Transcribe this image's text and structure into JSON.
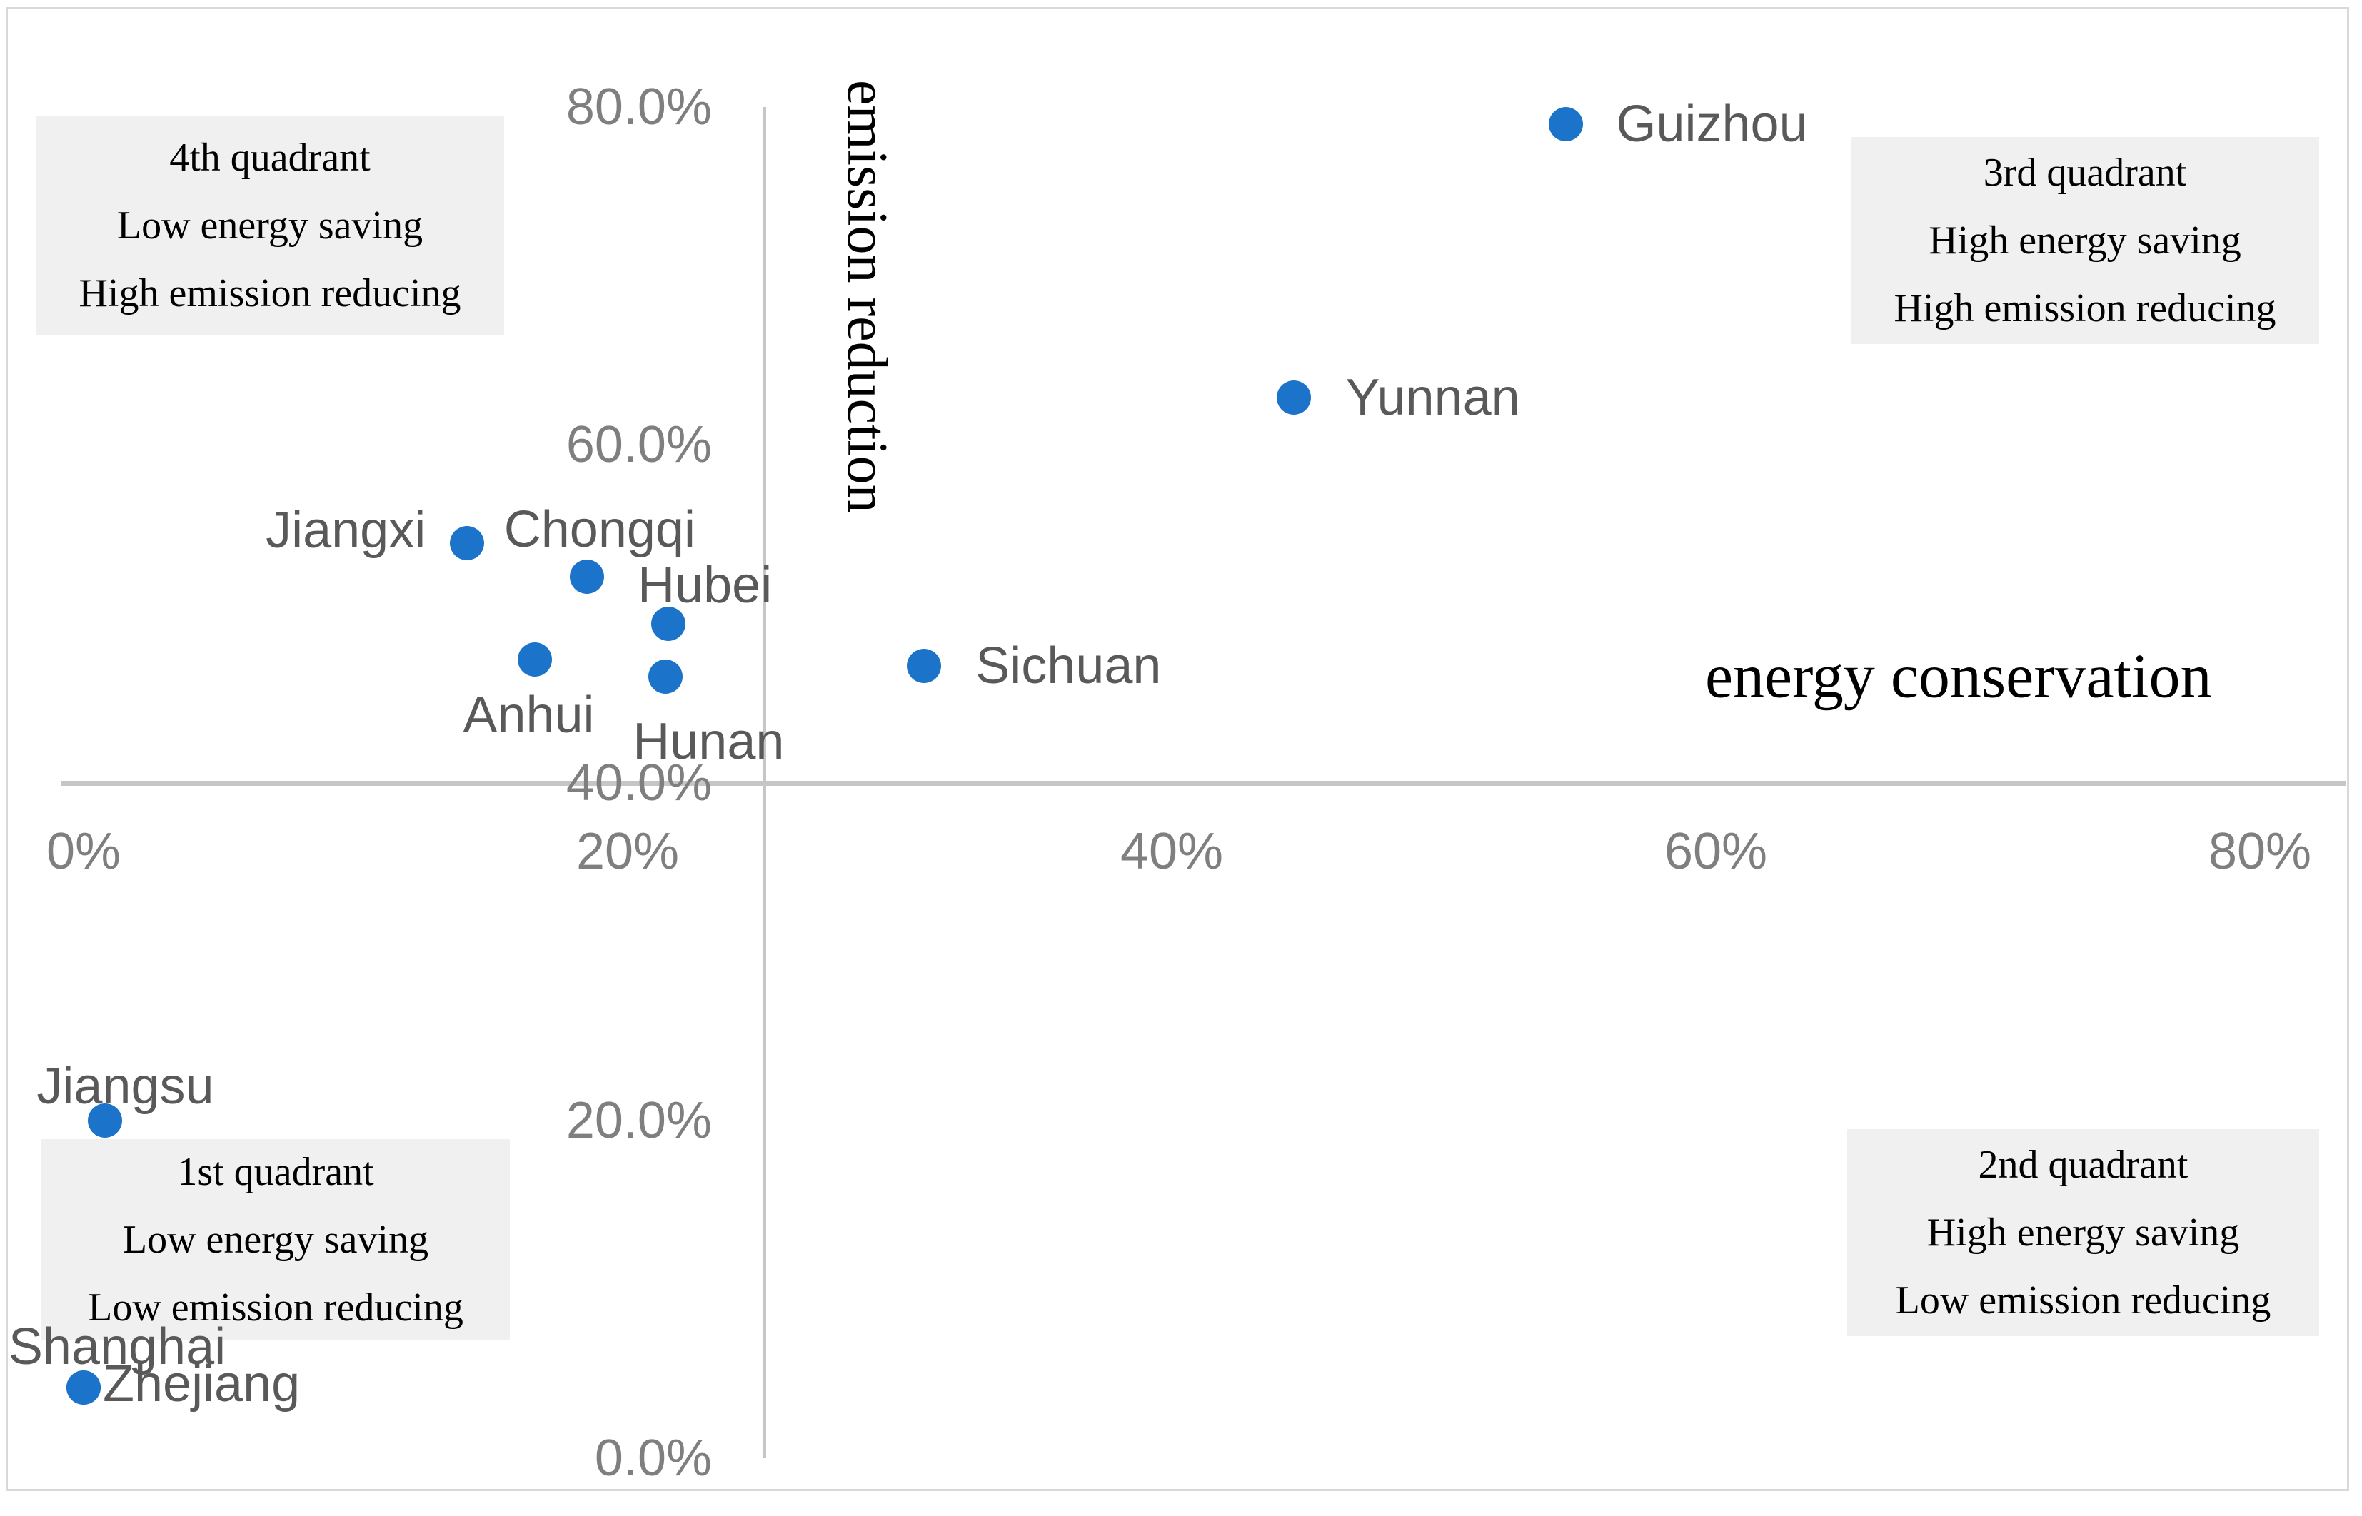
{
  "chart_data": {
    "type": "scatter",
    "title": "",
    "xlabel": "energy conservation",
    "ylabel": "emission reduction",
    "xlim": [
      0,
      80
    ],
    "ylim": [
      0,
      80
    ],
    "grid": false,
    "legend": false,
    "axes_cross_at": {
      "x": 25,
      "y": 40
    },
    "x_ticks": [
      {
        "value": 0,
        "label": "0%"
      },
      {
        "value": 20,
        "label": "20%"
      },
      {
        "value": 40,
        "label": "40%"
      },
      {
        "value": 60,
        "label": "60%"
      },
      {
        "value": 80,
        "label": "80%"
      }
    ],
    "y_ticks": [
      {
        "value": 0,
        "label": "0.0%"
      },
      {
        "value": 20,
        "label": "20.0%"
      },
      {
        "value": 40,
        "label": "40.0%"
      },
      {
        "value": 60,
        "label": "60.0%"
      },
      {
        "value": 80,
        "label": "80.0%"
      }
    ],
    "series": [
      {
        "name": "provinces",
        "marker_color": "#1B74C9",
        "points": [
          {
            "name": "Guizhou",
            "x": 54.5,
            "y": 79.0,
            "label_side": "right"
          },
          {
            "name": "Yunnan",
            "x": 44.5,
            "y": 62.8,
            "label_side": "right"
          },
          {
            "name": "Jiangxi",
            "x": 14.1,
            "y": 54.2,
            "label_side": "left"
          },
          {
            "name": "Chongqi",
            "x": 18.5,
            "y": 52.2,
            "label_side": "above"
          },
          {
            "name": "Hubei",
            "x": 21.5,
            "y": 49.4,
            "label_side": "above"
          },
          {
            "name": "Anhui",
            "x": 16.6,
            "y": 47.3,
            "label_side": "below"
          },
          {
            "name": "Hunan",
            "x": 21.4,
            "y": 46.3,
            "label_side": "below"
          },
          {
            "name": "Sichuan",
            "x": 30.9,
            "y": 46.9,
            "label_side": "right"
          },
          {
            "name": "Jiangsu",
            "x": 0.8,
            "y": 20.0,
            "label_side": "above"
          },
          {
            "name": "Shanghai",
            "x": 0.0,
            "y": 4.2,
            "label_side": "above"
          },
          {
            "name": "Zhejiang",
            "x": 0.0,
            "y": 4.2,
            "label_side": "right"
          }
        ]
      }
    ],
    "quadrants": [
      {
        "position": "top-left",
        "lines": [
          "4th quadrant",
          "Low energy saving",
          "High emission reducing"
        ]
      },
      {
        "position": "top-right",
        "lines": [
          "3rd quadrant",
          "High energy saving",
          "High emission reducing"
        ]
      },
      {
        "position": "bottom-left",
        "lines": [
          "1st quadrant",
          "Low energy saving",
          "Low emission reducing"
        ]
      },
      {
        "position": "bottom-right",
        "lines": [
          "2nd quadrant",
          "High energy saving",
          "Low emission reducing"
        ]
      }
    ],
    "colors": {
      "marker": "#1B74C9",
      "tick_text": "#7f7f7f",
      "point_label_text": "#595959",
      "quadrant_box_bg": "#f0f0f0",
      "axis_line": "#c6c6c6",
      "frame_border": "#d9d9d9"
    }
  }
}
